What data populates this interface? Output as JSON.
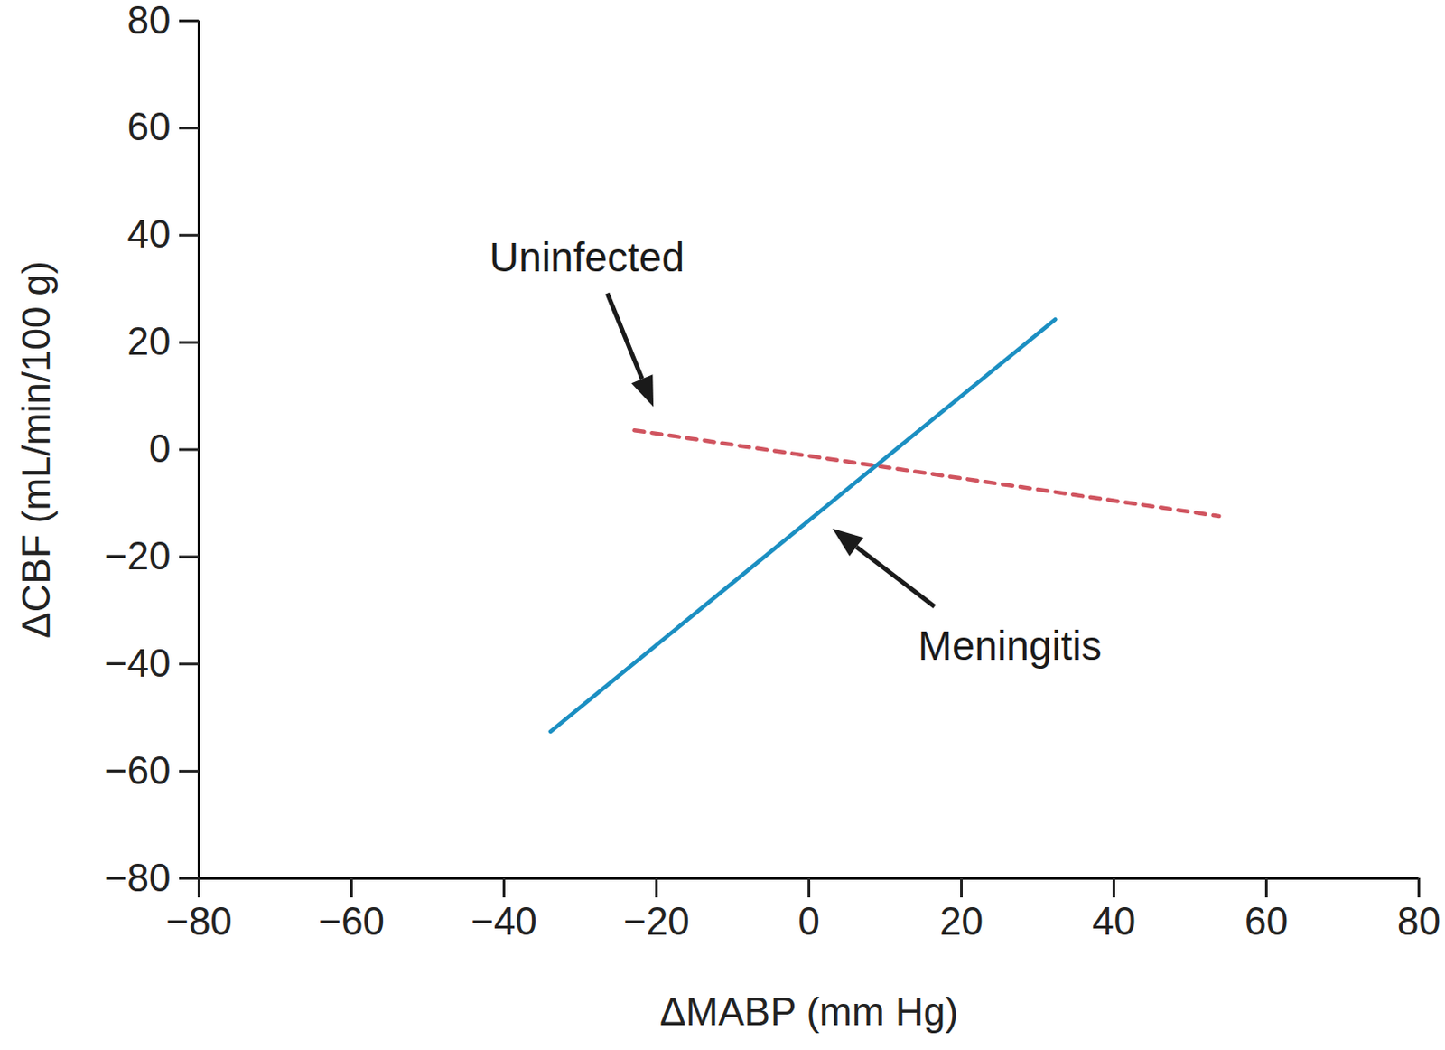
{
  "chart_data": {
    "type": "line",
    "x_label": "ΔMABP (mm Hg)",
    "y_label": "ΔCBF (mL/min/100 g)",
    "xlim": [
      -80,
      80
    ],
    "ylim": [
      -80,
      80
    ],
    "xticks": [
      -80,
      -60,
      -40,
      -20,
      0,
      20,
      40,
      60,
      80
    ],
    "yticks": [
      -80,
      -60,
      -40,
      -20,
      0,
      20,
      40,
      60,
      80
    ],
    "grid": false,
    "series": [
      {
        "name": "Uninfected",
        "color": "#d0545f",
        "line_style": "dashed",
        "x": [
          -22.9,
          53.8
        ],
        "values": [
          3.6,
          -12.4
        ]
      },
      {
        "name": "Meningitis",
        "color": "#1b8fc2",
        "line_style": "solid",
        "x": [
          -33.9,
          32.3
        ],
        "values": [
          -52.6,
          24.3
        ]
      }
    ]
  }
}
